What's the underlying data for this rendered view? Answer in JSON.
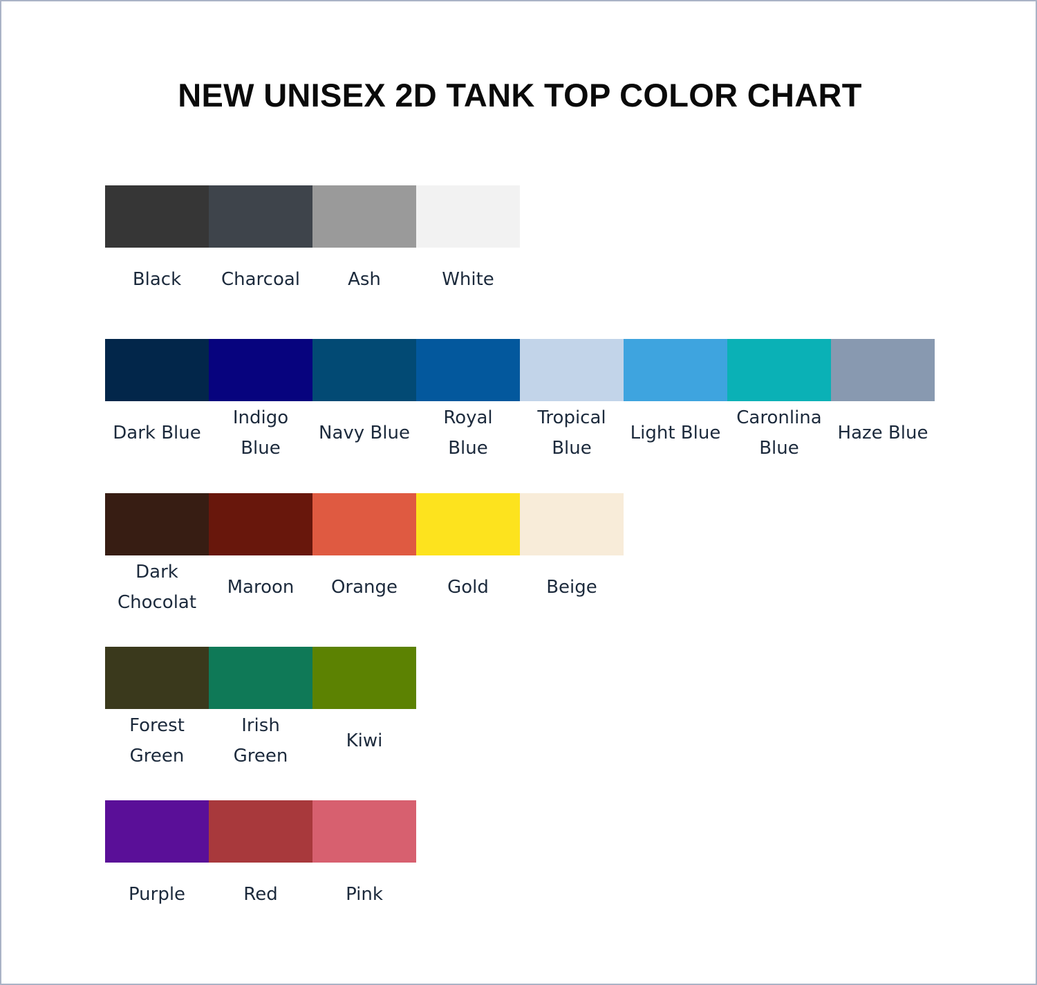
{
  "title": "NEW UNISEX 2D TANK TOP COLOR CHART",
  "rows": [
    [
      {
        "label": "Black",
        "color": "#363636"
      },
      {
        "label": "Charcoal",
        "color": "#3e444b"
      },
      {
        "label": "Ash",
        "color": "#9a9a9a"
      },
      {
        "label": "White",
        "color": "#f2f2f2"
      }
    ],
    [
      {
        "label": "Dark Blue",
        "color": "#02264a"
      },
      {
        "label": "Indigo\nBlue",
        "color": "#07037e"
      },
      {
        "label": "Navy Blue",
        "color": "#024a74"
      },
      {
        "label": "Royal\nBlue",
        "color": "#03589d"
      },
      {
        "label": "Tropical\nBlue",
        "color": "#c2d4e9"
      },
      {
        "label": "Light Blue",
        "color": "#3ea4df"
      },
      {
        "label": "Caronlina\nBlue",
        "color": "#0ab1b6"
      },
      {
        "label": "Haze Blue",
        "color": "#8899b0"
      }
    ],
    [
      {
        "label": "Dark\nChocolat",
        "color": "#371d13"
      },
      {
        "label": "Maroon",
        "color": "#68170c"
      },
      {
        "label": "Orange",
        "color": "#df5a41"
      },
      {
        "label": "Gold",
        "color": "#fde31e"
      },
      {
        "label": "Beige",
        "color": "#f8ecd9"
      }
    ],
    [
      {
        "label": "Forest\nGreen",
        "color": "#3a391c"
      },
      {
        "label": "Irish\nGreen",
        "color": "#0f7957"
      },
      {
        "label": "Kiwi",
        "color": "#5c8202"
      }
    ],
    [
      {
        "label": "Purple",
        "color": "#5a0f98"
      },
      {
        "label": "Red",
        "color": "#a8393c"
      },
      {
        "label": "Pink",
        "color": "#d7606f"
      }
    ]
  ]
}
